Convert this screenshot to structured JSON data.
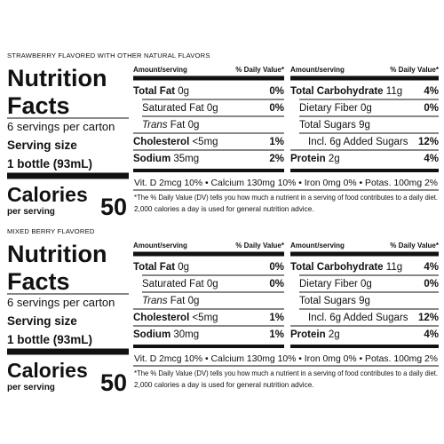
{
  "panels": [
    {
      "flavor": "STRAWBERRY FLAVORED WITH OTHER NATURAL FLAVORS",
      "title": [
        "Nutrition",
        "Facts"
      ],
      "servings": "6 servings per carton",
      "serving_size_label": "Serving size",
      "serving_size": "1 bottle (93mL)",
      "calories_label": "Calories",
      "per_serving": "per serving",
      "calories": 50,
      "tables": [
        {
          "header": [
            "Amount/serving",
            "% Daily Value*"
          ],
          "rows": [
            {
              "name": "Total Fat",
              "amount": "0g",
              "dv": "0%",
              "bold": true
            },
            {
              "name": "Saturated Fat",
              "amount": "0g",
              "dv": "0%",
              "indent": 1
            },
            {
              "italic": "Trans",
              "name": "Fat",
              "amount": "0g",
              "indent": 1
            },
            {
              "name": "Cholesterol",
              "amount": "<5mg",
              "dv": "1%",
              "bold": true
            },
            {
              "name": "Sodium",
              "amount": "35mg",
              "dv": "2%",
              "bold": true
            }
          ]
        },
        {
          "header": [
            "Amount/serving",
            "% Daily Value*"
          ],
          "rows": [
            {
              "name": "Total Carbohydrate",
              "amount": "11g",
              "dv": "4%",
              "bold": true
            },
            {
              "name": "Dietary Fiber",
              "amount": "0g",
              "dv": "0%",
              "indent": 1
            },
            {
              "name": "Total Sugars",
              "amount": "9g",
              "indent": 1
            },
            {
              "name": "Incl. 6g Added Sugars",
              "dv": "12%",
              "indent": 2
            },
            {
              "name": "Protein",
              "amount": "2g",
              "dv": "4%",
              "bold": true
            }
          ]
        }
      ],
      "vitamins": "Vit. D 2mcg 10% • Calcium 130mg 10% • Iron 0mg 0% • Potas. 100mg 2%",
      "footnote": [
        "*The % Daily Value (DV) tells you how much a nutrient in a serving of food contributes to a daily diet.",
        "2,000 calories a day is used for general nutrition advice."
      ]
    },
    {
      "flavor": "MIXED BERRY FLAVORED",
      "title": [
        "Nutrition",
        "Facts"
      ],
      "servings": "6 servings per carton",
      "serving_size_label": "Serving size",
      "serving_size": "1 bottle (93mL)",
      "calories_label": "Calories",
      "per_serving": "per serving",
      "calories": 50,
      "tables": [
        {
          "header": [
            "Amount/serving",
            "% Daily Value*"
          ],
          "rows": [
            {
              "name": "Total Fat",
              "amount": "0g",
              "dv": "0%",
              "bold": true
            },
            {
              "name": "Saturated Fat",
              "amount": "0g",
              "dv": "0%",
              "indent": 1
            },
            {
              "italic": "Trans",
              "name": "Fat",
              "amount": "0g",
              "indent": 1
            },
            {
              "name": "Cholesterol",
              "amount": "<5mg",
              "dv": "1%",
              "bold": true
            },
            {
              "name": "Sodium",
              "amount": "30mg",
              "dv": "1%",
              "bold": true
            }
          ]
        },
        {
          "header": [
            "Amount/serving",
            "% Daily Value*"
          ],
          "rows": [
            {
              "name": "Total Carbohydrate",
              "amount": "11g",
              "dv": "4%",
              "bold": true
            },
            {
              "name": "Dietary Fiber",
              "amount": "0g",
              "dv": "0%",
              "indent": 1
            },
            {
              "name": "Total Sugars",
              "amount": "9g",
              "indent": 1
            },
            {
              "name": "Incl. 6g Added Sugars",
              "dv": "12%",
              "indent": 2
            },
            {
              "name": "Protein",
              "amount": "2g",
              "dv": "4%",
              "bold": true
            }
          ]
        }
      ],
      "vitamins": "Vit. D 2mcg 10% • Calcium 130mg 10% • Iron 0mg 0% • Potas. 100mg 2%",
      "footnote": [
        "*The % Daily Value (DV) tells you how much a nutrient in a serving of food contributes to a daily diet.",
        "2,000 calories a day is used for general nutrition advice."
      ]
    }
  ]
}
